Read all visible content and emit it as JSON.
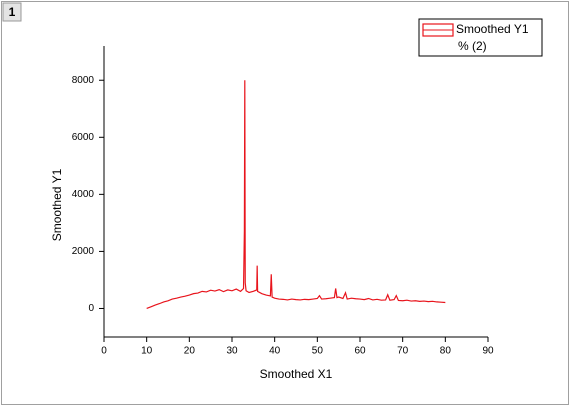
{
  "chart_data": {
    "type": "line",
    "panel_label": "1",
    "xlabel": "Smoothed X1",
    "ylabel": "Smoothed Y1",
    "xlim": [
      0,
      90
    ],
    "ylim": [
      -1000,
      9200
    ],
    "xticks": [
      0,
      10,
      20,
      30,
      40,
      50,
      60,
      70,
      80,
      90
    ],
    "yticks": [
      0,
      2000,
      4000,
      6000,
      8000
    ],
    "legend_position": "top-right",
    "x": [
      10,
      11,
      12,
      13,
      14,
      15,
      16,
      17,
      18,
      19,
      20,
      21,
      22,
      23,
      24,
      25,
      26,
      27,
      28,
      29,
      30,
      31,
      32,
      32.7,
      32.9,
      33.0,
      33.1,
      33.3,
      34,
      35,
      35.8,
      35.9,
      36.0,
      37,
      38,
      39,
      39.2,
      39.4,
      40,
      41,
      42,
      43,
      44,
      45,
      46,
      47,
      48,
      49,
      50,
      50.5,
      51,
      52,
      53,
      54,
      54.3,
      54.6,
      55,
      56,
      56.6,
      57,
      58,
      59,
      60,
      61,
      62,
      63,
      64,
      65,
      66,
      66.5,
      67,
      68,
      68.5,
      69,
      70,
      71,
      72,
      73,
      74,
      75,
      76,
      77,
      78,
      79,
      80
    ],
    "series": [
      {
        "name": "Smoothed Y1",
        "unit_label": "% (2)",
        "color": "#e8141c",
        "values": [
          0,
          60,
          120,
          170,
          230,
          270,
          330,
          360,
          400,
          430,
          470,
          520,
          540,
          600,
          580,
          640,
          610,
          660,
          590,
          650,
          620,
          680,
          600,
          700,
          2700,
          8000,
          900,
          620,
          560,
          600,
          650,
          1500,
          600,
          520,
          470,
          440,
          1200,
          400,
          360,
          330,
          320,
          300,
          330,
          310,
          300,
          320,
          310,
          330,
          350,
          450,
          330,
          340,
          360,
          380,
          700,
          380,
          400,
          350,
          550,
          330,
          360,
          340,
          330,
          310,
          350,
          300,
          320,
          290,
          300,
          480,
          290,
          310,
          450,
          280,
          270,
          290,
          260,
          270,
          250,
          260,
          240,
          250,
          230,
          220,
          210
        ]
      }
    ]
  }
}
